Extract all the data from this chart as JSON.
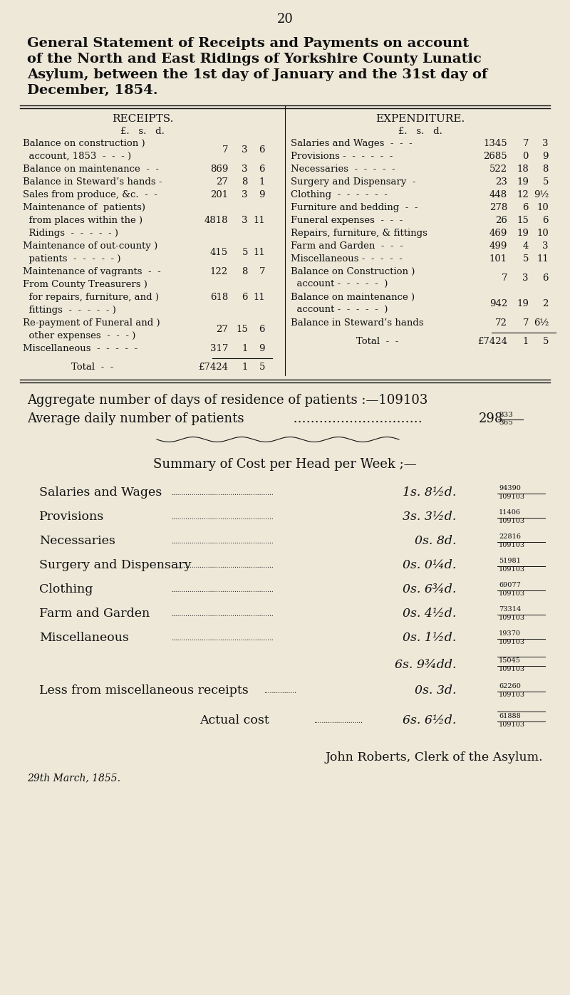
{
  "bg_color": "#ede8d8",
  "text_color": "#111111",
  "page_number": "20",
  "title_lines": [
    "General Statement of Receipts and Payments on account",
    "of the North and East Ridings of Yorkshire County Lunatic",
    "Asylum, between the 1st day of January and the 31st day of",
    "December, 1854."
  ],
  "receipts_header": "RECEIPTS.",
  "expenditure_header": "EXPENDITURE.",
  "lsd_header": "£.   s.   d.",
  "receipts_rows": [
    {
      "lines": [
        "Balance on construction )",
        "  account, 1853  -  -  - )"
      ],
      "p": "7",
      "s": "3",
      "d": "6",
      "span": 2
    },
    {
      "lines": [
        "Balance on maintenance  -  -"
      ],
      "p": "869",
      "s": "3",
      "d": "6",
      "span": 1
    },
    {
      "lines": [
        "Balance in Steward’s hands -"
      ],
      "p": "27",
      "s": "8",
      "d": "1",
      "span": 1
    },
    {
      "lines": [
        "Sales from produce, &c.  -  -"
      ],
      "p": "201",
      "s": "3",
      "d": "9",
      "span": 1
    },
    {
      "lines": [
        "Maintenance of  patients)",
        "  from places within the )",
        "  Ridings  -  -  -  -  - )"
      ],
      "p": "4818",
      "s": "3",
      "d": "11",
      "span": 3
    },
    {
      "lines": [
        "Maintenance of out-county )",
        "  patients  -  -  -  -  - )"
      ],
      "p": "415",
      "s": "5",
      "d": "11",
      "span": 2
    },
    {
      "lines": [
        "Maintenance of vagrants  -  -"
      ],
      "p": "122",
      "s": "8",
      "d": "7",
      "span": 1
    },
    {
      "lines": [
        "From County Treasurers )",
        "  for repairs, furniture, and )",
        "  fittings  -  -  -  -  - )"
      ],
      "p": "618",
      "s": "6",
      "d": "11",
      "span": 3
    },
    {
      "lines": [
        "Re-payment of Funeral and )",
        "  other expenses  -  -  - )"
      ],
      "p": "27",
      "s": "15",
      "d": "6",
      "span": 2
    },
    {
      "lines": [
        "Miscellaneous  -  -  -  -  -"
      ],
      "p": "317",
      "s": "1",
      "d": "9",
      "span": 1
    }
  ],
  "receipts_total": [
    "£7424",
    "1",
    "5"
  ],
  "expenditure_rows": [
    {
      "lines": [
        "Salaries and Wages  -  -  -"
      ],
      "p": "1345",
      "s": "7",
      "d": "3",
      "span": 1
    },
    {
      "lines": [
        "Provisions -  -  -  -  -  -"
      ],
      "p": "2685",
      "s": "0",
      "d": "9",
      "span": 1
    },
    {
      "lines": [
        "Necessaries  -  -  -  -  -"
      ],
      "p": "522",
      "s": "18",
      "d": "8",
      "span": 1
    },
    {
      "lines": [
        "Surgery and Dispensary  -"
      ],
      "p": "23",
      "s": "19",
      "d": "5",
      "span": 1
    },
    {
      "lines": [
        "Clothing  -  -  -  -  -  -"
      ],
      "p": "448",
      "s": "12",
      "d": "9½",
      "span": 1
    },
    {
      "lines": [
        "Furniture and bedding  -  -"
      ],
      "p": "278",
      "s": "6",
      "d": "10",
      "span": 1
    },
    {
      "lines": [
        "Funeral expenses  -  -  -"
      ],
      "p": "26",
      "s": "15",
      "d": "6",
      "span": 1
    },
    {
      "lines": [
        "Repairs, furniture, & fittings"
      ],
      "p": "469",
      "s": "19",
      "d": "10",
      "span": 1
    },
    {
      "lines": [
        "Farm and Garden  -  -  -"
      ],
      "p": "499",
      "s": "4",
      "d": "3",
      "span": 1
    },
    {
      "lines": [
        "Miscellaneous -  -  -  -  -"
      ],
      "p": "101",
      "s": "5",
      "d": "11",
      "span": 1
    },
    {
      "lines": [
        "Balance on Construction )",
        "  account -  -  -  -  -  )"
      ],
      "p": "7",
      "s": "3",
      "d": "6",
      "span": 2
    },
    {
      "lines": [
        "Balance on maintenance )",
        "  account -  -  -  -  -  )"
      ],
      "p": "942",
      "s": "19",
      "d": "2",
      "span": 2
    },
    {
      "lines": [
        "Balance in Steward’s hands"
      ],
      "p": "72",
      "s": "7",
      "d": "6½",
      "span": 1
    }
  ],
  "expenditure_total": [
    "£7424",
    "1",
    "5"
  ],
  "aggregate_text": "Aggregate number of days of residence of patients :—109103",
  "average_label": "Average daily number of patients",
  "average_dots": "  …………………………",
  "average_value": "298",
  "average_num": "333",
  "average_den": "365",
  "summary_title": "Summary of Cost per Head per Week ;—",
  "summary_rows": [
    {
      "label": "Salaries and Wages",
      "cost": "1s. 8½d.",
      "num": "94390",
      "den": "109103"
    },
    {
      "label": "Provisions",
      "cost": "3s. 3½d.",
      "num": "11406",
      "den": "109103"
    },
    {
      "label": "Necessaries",
      "cost": "0s. 8d.",
      "num": "22816",
      "den": "109103"
    },
    {
      "label": "Surgery and Dispensary",
      "cost": "0s. 0¼d.",
      "num": "51981",
      "den": "109103"
    },
    {
      "label": "Clothing",
      "cost": "0s. 6¾d.",
      "num": "69077",
      "den": "109103"
    },
    {
      "label": "Farm and Garden",
      "cost": "0s. 4½d.",
      "num": "73314",
      "den": "109103"
    },
    {
      "label": "Miscellaneous",
      "cost": "0s. 1½d.",
      "num": "19370",
      "den": "109103"
    }
  ],
  "subtotal_cost": "6s. 9¾dd.",
  "subtotal_num": "15045",
  "subtotal_den": "109103",
  "less_label": "Less from miscellaneous receipts",
  "less_cost": "0s. 3d.",
  "less_num": "62260",
  "less_den": "109103",
  "actual_label": "Actual cost",
  "actual_cost": "6s. 6½d.",
  "actual_num": "61888",
  "actual_den": "109103",
  "signature": "John Roberts, Clerk of the Asylum.",
  "date": "29th March, 1855."
}
